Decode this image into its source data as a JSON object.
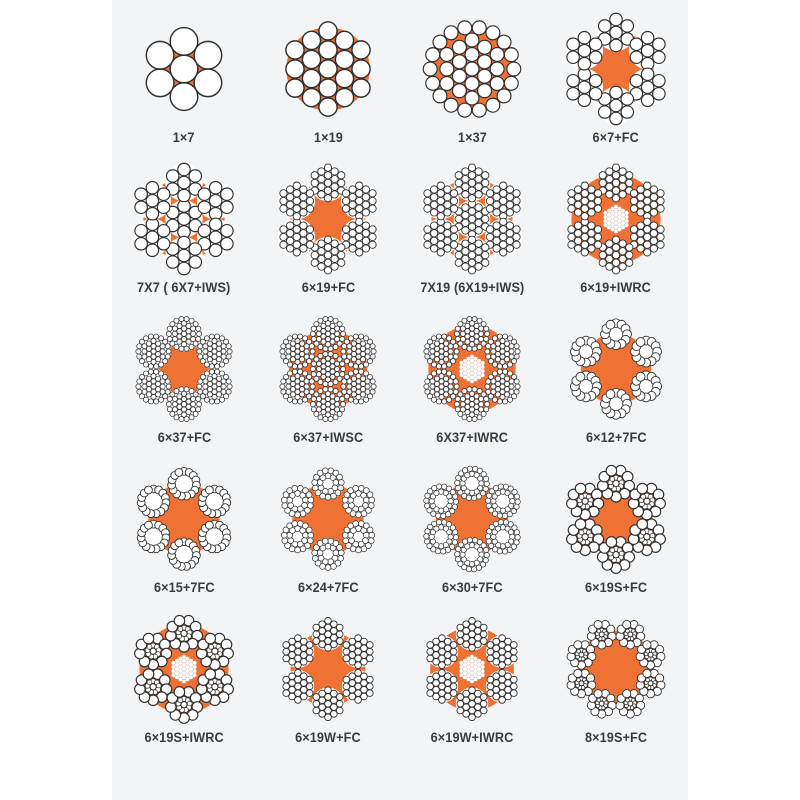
{
  "page": {
    "title": "Wire rope construction cross-sections",
    "background": "#ffffff",
    "panel_background": "#f3f4f6"
  },
  "colors": {
    "orange_core": "#EF7133",
    "wire_fill": "#FFFFFF",
    "wire_stroke": "#2F2F2F",
    "label_text": "#3B3B3B"
  },
  "cells": [
    {
      "label": "1×7",
      "pattern": "1x7"
    },
    {
      "label": "1×19",
      "pattern": "1x19"
    },
    {
      "label": "1×37",
      "pattern": "1x37"
    },
    {
      "label": "6×7+FC",
      "pattern": "6x7+FC"
    },
    {
      "label": "7X7 ( 6X7+IWS)",
      "pattern": "7x7"
    },
    {
      "label": "6×19+FC",
      "pattern": "6x19+FC"
    },
    {
      "label": "7X19 (6X19+IWS)",
      "pattern": "7x19"
    },
    {
      "label": "6×19+IWRC",
      "pattern": "6x19+IWRC"
    },
    {
      "label": "6×37+FC",
      "pattern": "6x37+FC"
    },
    {
      "label": "6×37+IWSC",
      "pattern": "6x37+IWSC"
    },
    {
      "label": "6X37+IWRC",
      "pattern": "6x37+IWRC"
    },
    {
      "label": "6×12+7FC",
      "pattern": "6x12"
    },
    {
      "label": "6×15+7FC",
      "pattern": "6x15"
    },
    {
      "label": "6×24+7FC",
      "pattern": "6x24"
    },
    {
      "label": "6×30+7FC",
      "pattern": "6x30"
    },
    {
      "label": "6×19S+FC",
      "pattern": "6x19S+FC"
    },
    {
      "label": "6×19S+IWRC",
      "pattern": "6x19S+IWRC"
    },
    {
      "label": "6×19W+FC",
      "pattern": "6x19W+FC"
    },
    {
      "label": "6×19W+IWRC",
      "pattern": "6x19W+IWRC"
    },
    {
      "label": "8×19S+FC",
      "pattern": "8x19S"
    }
  ]
}
